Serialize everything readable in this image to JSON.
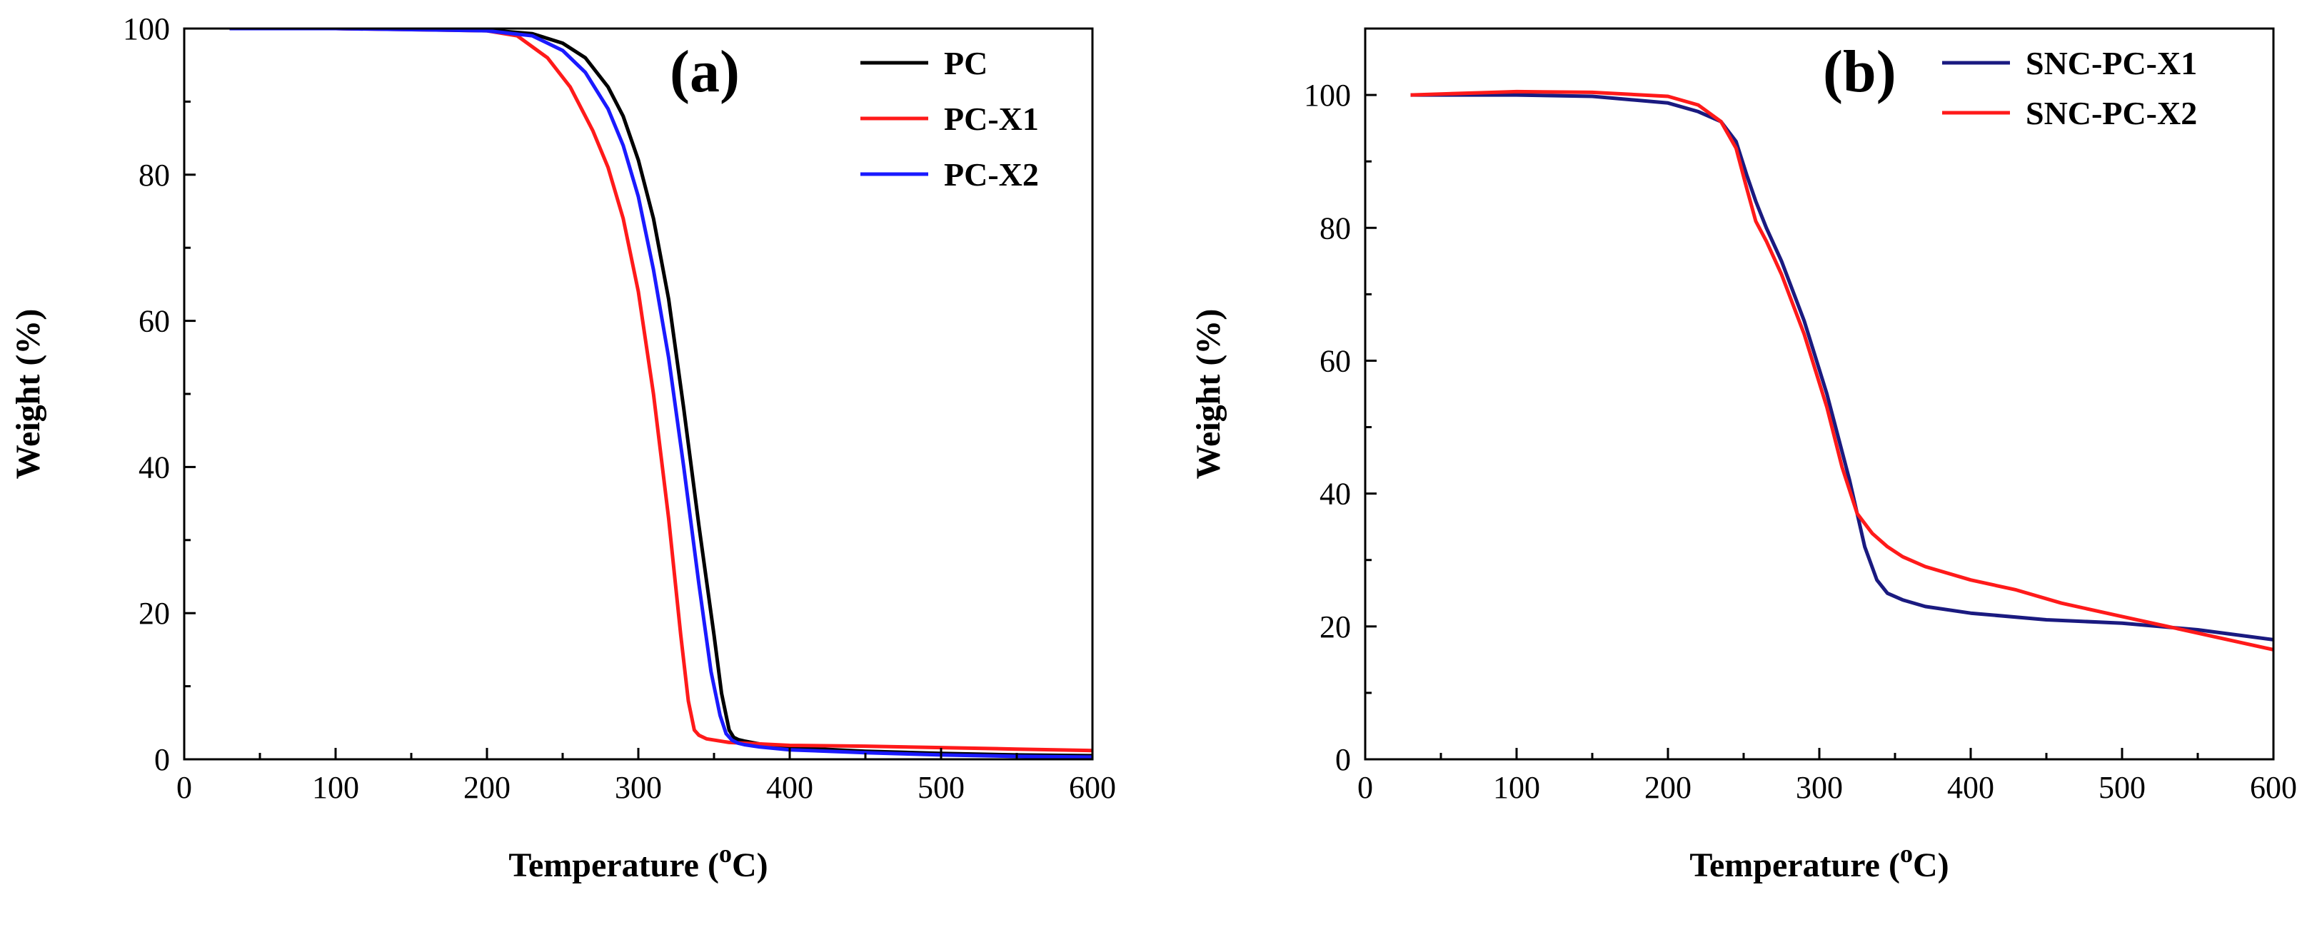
{
  "chart_data": [
    {
      "type": "line",
      "panel_label": "(a)",
      "xlabel": "Temperature (",
      "xlabel_sup": "o",
      "xlabel_end": "C)",
      "ylabel": "Weight (%)",
      "xlim": [
        0,
        600
      ],
      "ylim": [
        0,
        100
      ],
      "xticks": [
        0,
        100,
        200,
        300,
        400,
        500,
        600
      ],
      "yticks": [
        0,
        20,
        40,
        60,
        80,
        100
      ],
      "legend_position": "top-right",
      "series": [
        {
          "name": "PC",
          "color": "#000000",
          "x": [
            30,
            100,
            200,
            230,
            250,
            265,
            280,
            290,
            300,
            310,
            320,
            330,
            340,
            350,
            355,
            360,
            363,
            366,
            370,
            380,
            400,
            450,
            500,
            550,
            600
          ],
          "y": [
            100,
            100,
            99.8,
            99.3,
            98,
            96,
            92,
            88,
            82,
            74,
            63,
            48,
            32,
            17,
            9,
            4,
            3,
            2.7,
            2.5,
            2.1,
            1.6,
            1.1,
            0.8,
            0.6,
            0.5
          ]
        },
        {
          "name": "PC-X1",
          "color": "#ff1a1a",
          "x": [
            30,
            100,
            200,
            220,
            240,
            255,
            270,
            280,
            290,
            300,
            310,
            320,
            328,
            333,
            337,
            340,
            345,
            360,
            400,
            450,
            500,
            550,
            600
          ],
          "y": [
            100,
            100,
            99.7,
            99,
            96,
            92,
            86,
            81,
            74,
            64,
            50,
            33,
            17,
            8,
            4,
            3.3,
            2.8,
            2.3,
            1.9,
            1.8,
            1.6,
            1.4,
            1.2
          ]
        },
        {
          "name": "PC-X2",
          "color": "#1a1aff",
          "x": [
            30,
            100,
            200,
            230,
            250,
            265,
            280,
            290,
            300,
            310,
            320,
            330,
            340,
            348,
            354,
            358,
            362,
            366,
            370,
            380,
            400,
            450,
            500,
            550,
            600
          ],
          "y": [
            100,
            100,
            99.7,
            99,
            97,
            94,
            89,
            84,
            77,
            67,
            55,
            40,
            24,
            12,
            6,
            3.5,
            2.6,
            2.2,
            2.0,
            1.7,
            1.3,
            0.9,
            0.6,
            0.4,
            0.3
          ]
        }
      ]
    },
    {
      "type": "line",
      "panel_label": "(b)",
      "xlabel": "Temperature (",
      "xlabel_sup": "o",
      "xlabel_end": "C)",
      "ylabel": "Weight (%)",
      "xlim": [
        0,
        600
      ],
      "ylim": [
        0,
        110
      ],
      "xticks": [
        0,
        100,
        200,
        300,
        400,
        500,
        600
      ],
      "yticks": [
        0,
        20,
        40,
        60,
        80,
        100
      ],
      "legend_position": "top-right",
      "series": [
        {
          "name": "SNC-PC-X1",
          "color": "#1a1a80",
          "x": [
            30,
            100,
            150,
            200,
            220,
            235,
            245,
            252,
            258,
            265,
            275,
            290,
            305,
            320,
            330,
            338,
            345,
            355,
            370,
            400,
            450,
            500,
            550,
            600
          ],
          "y": [
            100,
            100,
            99.8,
            98.8,
            97.5,
            96,
            93,
            88,
            84,
            80,
            75,
            66,
            55,
            42,
            32,
            27,
            25,
            24,
            23,
            22,
            21,
            20.5,
            19.5,
            18
          ]
        },
        {
          "name": "SNC-PC-X2",
          "color": "#ff1a1a",
          "x": [
            30,
            100,
            150,
            200,
            220,
            235,
            245,
            252,
            258,
            265,
            275,
            290,
            305,
            315,
            325,
            335,
            345,
            355,
            370,
            400,
            430,
            460,
            500,
            530,
            560,
            600
          ],
          "y": [
            100,
            100.5,
            100.4,
            99.8,
            98.5,
            96,
            92,
            86,
            81,
            78,
            73,
            64,
            53,
            44,
            37,
            34,
            32,
            30.5,
            29,
            27,
            25.5,
            23.5,
            21.5,
            20,
            18.5,
            16.5
          ]
        }
      ]
    }
  ]
}
